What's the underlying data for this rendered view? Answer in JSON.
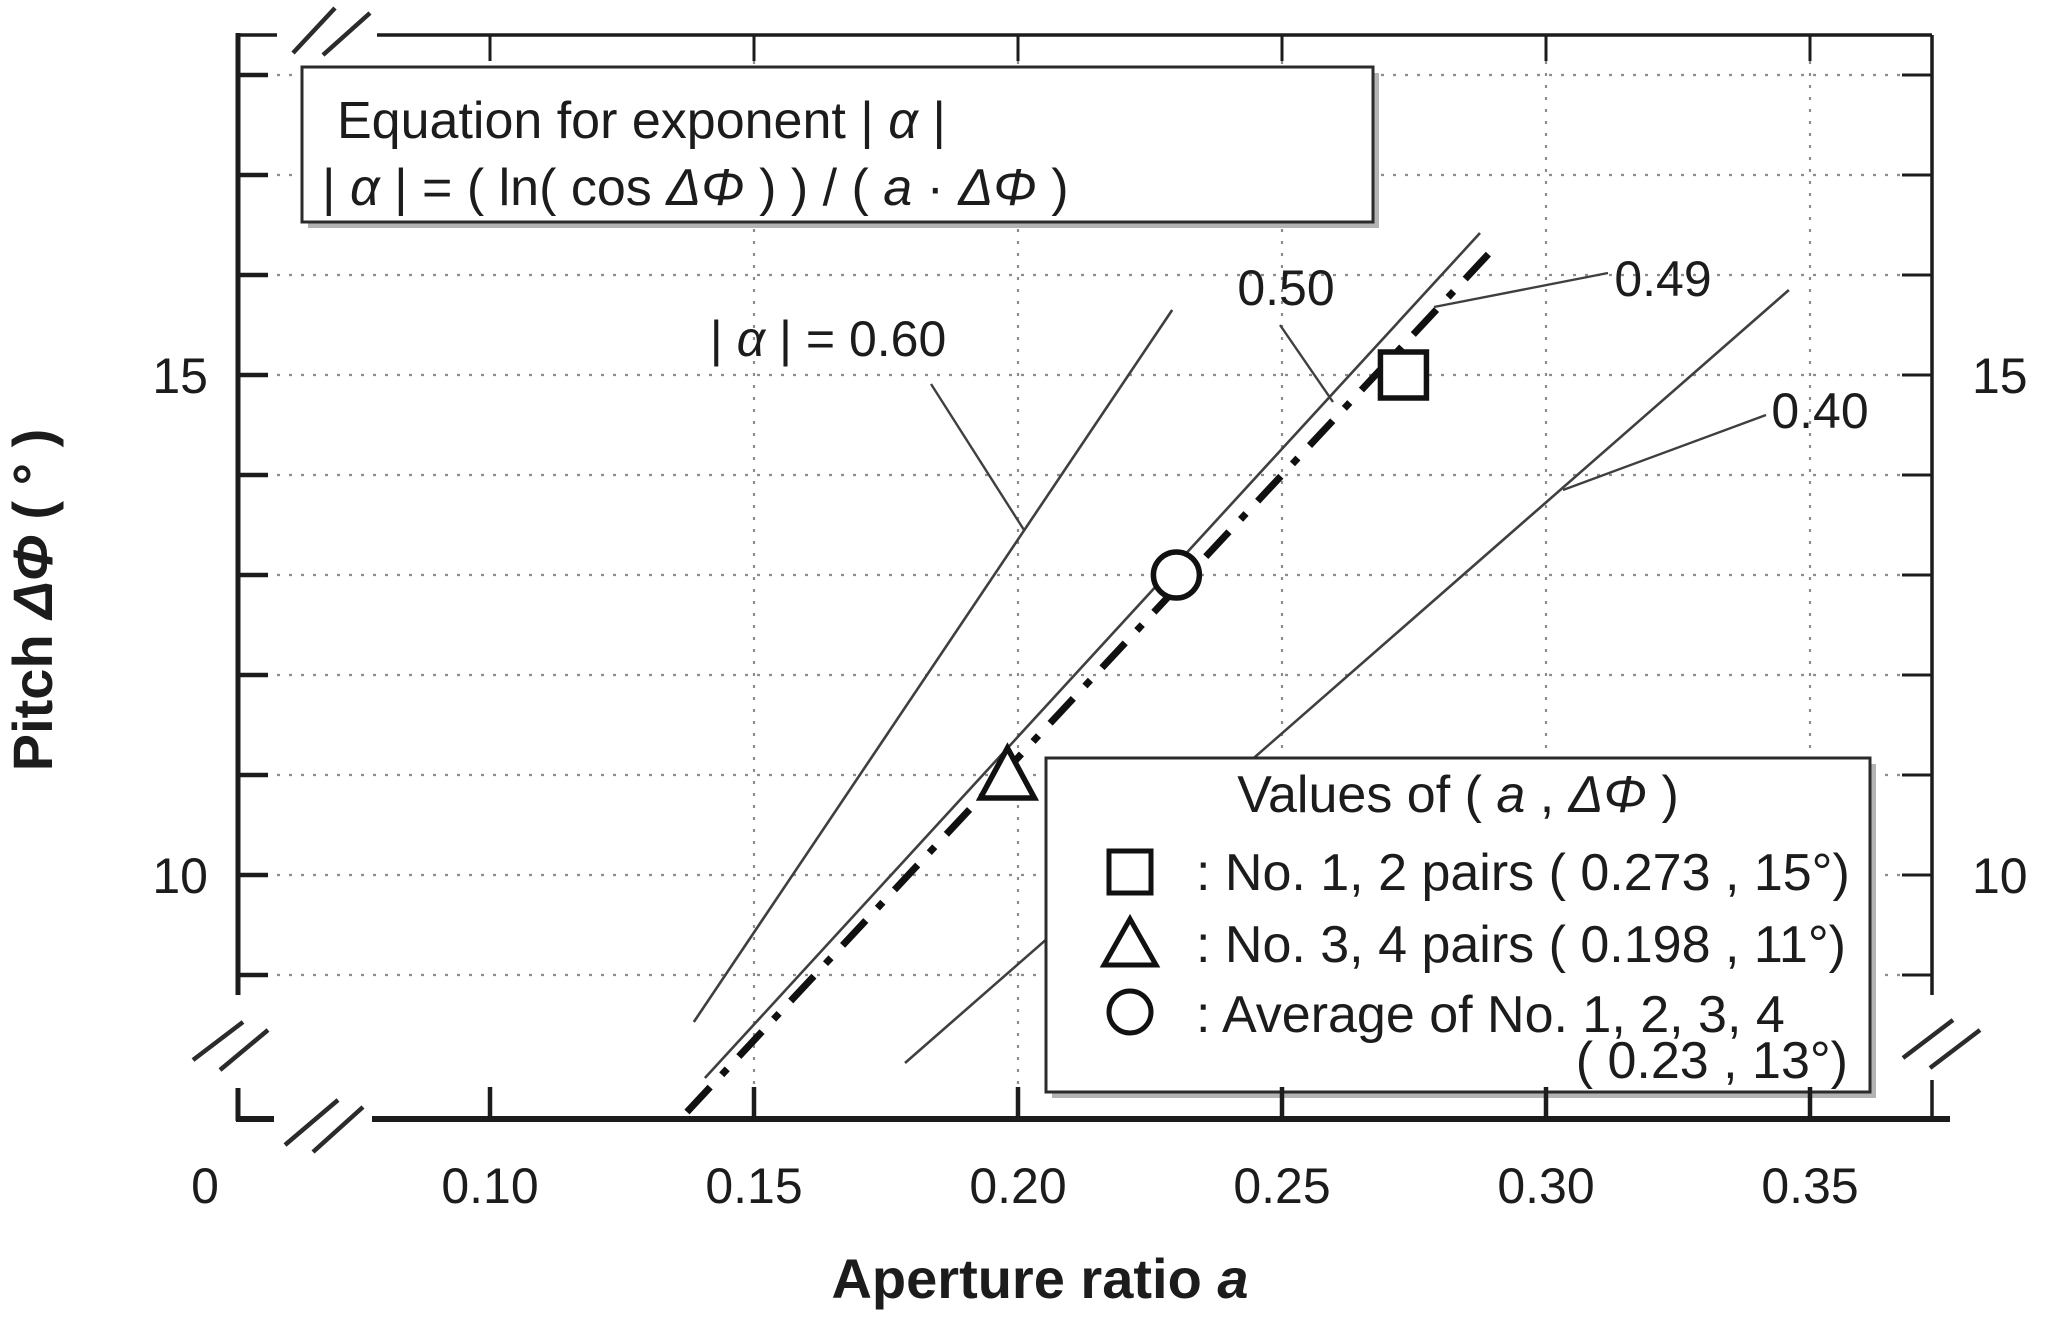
{
  "figure": {
    "bg": "#ffffff",
    "text_color": "#1c1c1c",
    "grid_color": "#8c8c8c"
  },
  "equation_box": {
    "line1_parts": [
      {
        "t": "Equation for exponent  "
      },
      {
        "t": "| "
      },
      {
        "t": "α",
        "i": true
      },
      {
        "t": " |"
      }
    ],
    "line2_parts": [
      {
        "t": "| "
      },
      {
        "t": "α",
        "i": true
      },
      {
        "t": " |  =  ( ln( cos "
      },
      {
        "t": "ΔΦ",
        "i": true
      },
      {
        "t": " ) ) / ( "
      },
      {
        "t": "a",
        "i": true
      },
      {
        "t": " · "
      },
      {
        "t": "ΔΦ",
        "i": true
      },
      {
        "t": " )"
      }
    ]
  },
  "axes": {
    "x": {
      "title_parts": [
        {
          "t": "Aperture ratio  "
        },
        {
          "t": "a",
          "i": true
        }
      ],
      "ticks": [
        {
          "label": "0",
          "px": 205
        },
        {
          "label": "0.10",
          "a": 0.1
        },
        {
          "label": "0.15",
          "a": 0.15
        },
        {
          "label": "0.20",
          "a": 0.2
        },
        {
          "label": "0.25",
          "a": 0.25
        },
        {
          "label": "0.30",
          "a": 0.3
        },
        {
          "label": "0.35",
          "a": 0.35
        }
      ]
    },
    "y": {
      "title_parts": [
        {
          "t": "Pitch  "
        },
        {
          "t": "ΔΦ",
          "i": true
        },
        {
          "t": " ( ° )"
        }
      ],
      "minor_tick_degs": [
        9,
        10,
        11,
        12,
        13,
        14,
        15,
        16,
        17,
        18
      ],
      "left_labels": [
        {
          "label": "15",
          "deg": 15
        },
        {
          "label": "10",
          "deg": 10
        }
      ],
      "right_labels": [
        {
          "label": "15",
          "deg": 15
        },
        {
          "label": "10",
          "deg": 10
        }
      ]
    }
  },
  "gridlines": {
    "horizontal_degs": [
      9,
      10,
      11,
      12,
      13,
      14,
      15,
      16,
      17,
      18
    ],
    "vertical_a": [
      0.15,
      0.2,
      0.25,
      0.3,
      0.35
    ]
  },
  "iso_lines": [
    {
      "alpha": 0.6,
      "style": "solid",
      "label_parts": [
        {
          "t": "| "
        },
        {
          "t": "α",
          "i": true
        },
        {
          "t": " |  =  0.60"
        }
      ],
      "p1": {
        "a": 0.1386,
        "deg": 8.53
      },
      "p2": {
        "a": 0.2292,
        "deg": 15.65
      }
    },
    {
      "alpha": 0.5,
      "style": "solid",
      "label_parts": [
        {
          "t": "0.50"
        }
      ],
      "p1": {
        "a": 0.1407,
        "deg": 7.97
      },
      "p2": {
        "a": 0.2875,
        "deg": 16.42
      }
    },
    {
      "alpha": 0.49,
      "style": "dashdot",
      "label_parts": [
        {
          "t": "0.49"
        }
      ],
      "p1": {
        "a": 0.1373,
        "deg": 7.63
      },
      "p2": {
        "a": 0.2907,
        "deg": 16.3
      }
    },
    {
      "alpha": 0.4,
      "style": "solid",
      "label_parts": [
        {
          "t": "0.40"
        }
      ],
      "p1": {
        "a": 0.1786,
        "deg": 8.12
      },
      "p2": {
        "a": 0.346,
        "deg": 15.85
      }
    }
  ],
  "points": [
    {
      "marker": "square",
      "a": 0.273,
      "deg": 15
    },
    {
      "marker": "triangle",
      "a": 0.198,
      "deg": 11
    },
    {
      "marker": "circle",
      "a": 0.23,
      "deg": 13
    }
  ],
  "legend": {
    "title_parts": [
      {
        "t": "Values of  ( "
      },
      {
        "t": "a",
        "i": true
      },
      {
        "t": " , "
      },
      {
        "t": "ΔΦ",
        "i": true
      },
      {
        "t": " )"
      }
    ],
    "rows": [
      {
        "marker": "square",
        "text": ":  No. 1, 2 pairs ( 0.273 , 15°)"
      },
      {
        "marker": "triangle",
        "text": ":  No. 3, 4 pairs ( 0.198 , 11°)"
      },
      {
        "marker": "circle",
        "text": ":  Average of No. 1, 2, 3, 4"
      }
    ],
    "overflow_text": "( 0.23 , 13°)"
  },
  "chart_data": {
    "type": "scatter",
    "title": "",
    "xlabel": "Aperture ratio a",
    "ylabel": "Pitch ΔΦ (°)",
    "x_ticks": [
      0,
      0.1,
      0.15,
      0.2,
      0.25,
      0.3,
      0.35
    ],
    "y_ticks_labeled": [
      10,
      15
    ],
    "y_minor_ticks_deg": [
      9,
      10,
      11,
      12,
      13,
      14,
      15,
      16,
      17,
      18
    ],
    "axis_breaks": {
      "x": "break between 0 and 0.10",
      "y": "break near bottom of both y axes"
    },
    "grid": "dotted gridlines: horizontal every 1 degree, vertical every 0.05 aperture ratio",
    "equation": "|α| = (ln(cos ΔΦ))/(a·ΔΦ)",
    "series": [
      {
        "name": "No. 1, 2 pairs",
        "marker": "square",
        "points": [
          {
            "a": 0.273,
            "pitch_deg": 15
          }
        ]
      },
      {
        "name": "No. 3, 4 pairs",
        "marker": "triangle",
        "points": [
          {
            "a": 0.198,
            "pitch_deg": 11
          }
        ]
      },
      {
        "name": "Average of No. 1, 2, 3, 4",
        "marker": "circle",
        "points": [
          {
            "a": 0.23,
            "pitch_deg": 13
          }
        ]
      }
    ],
    "iso_alpha_curves": [
      {
        "abs_alpha": 0.6,
        "style": "thin solid"
      },
      {
        "abs_alpha": 0.5,
        "style": "thin solid"
      },
      {
        "abs_alpha": 0.49,
        "style": "thick dash-dot, fit through the data points"
      },
      {
        "abs_alpha": 0.4,
        "style": "thin solid"
      }
    ],
    "legend_title": "Values of ( a , ΔΦ )",
    "legend_position": "bottom-right inside plot",
    "annotation_labels": [
      "|α| = 0.60",
      "0.50",
      "0.49",
      "0.40"
    ]
  }
}
